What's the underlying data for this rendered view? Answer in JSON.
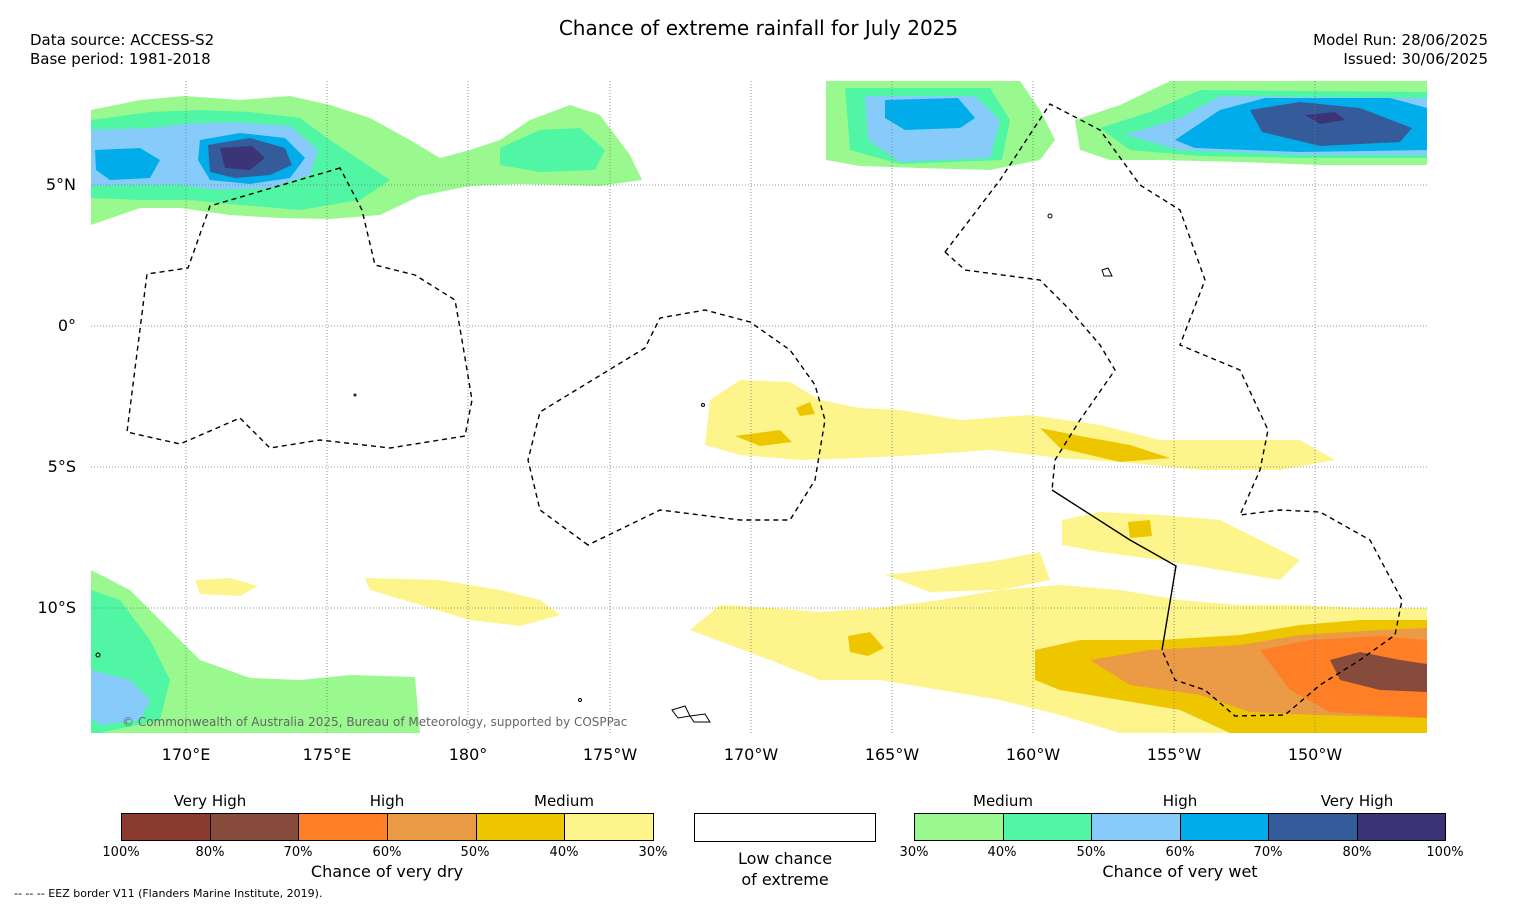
{
  "header": {
    "title": "Chance of extreme rainfall for July 2025",
    "left_lines": [
      "Data source: ACCESS-S2",
      "Base period: 1981-2018"
    ],
    "right_lines": [
      "Model Run: 28/06/2025",
      "Issued: 30/06/2025"
    ]
  },
  "map": {
    "latitude_labels": [
      "5°N",
      "0°",
      "5°S",
      "10°S"
    ],
    "longitude_labels": [
      "170°E",
      "175°E",
      "180°",
      "175°W",
      "170°W",
      "165°W",
      "160°W",
      "155°W",
      "150°W"
    ],
    "copyright": "© Commonwealth of Australia 2025, Bureau of Meteorology, supported by COSPPac"
  },
  "legend_dry": {
    "categories": [
      "Very High",
      "High",
      "Medium"
    ],
    "ticks": [
      "100%",
      "80%",
      "70%",
      "60%",
      "50%",
      "40%",
      "30%"
    ],
    "colors": [
      "#8b3a30",
      "#874b3b",
      "#ff7f27",
      "#eb9a45",
      "#edc600",
      "#fdf58c"
    ],
    "caption": "Chance of very dry"
  },
  "legend_low": {
    "line1": "Low chance",
    "line2": "of extreme"
  },
  "legend_wet": {
    "categories": [
      "Medium",
      "High",
      "Very High"
    ],
    "ticks": [
      "30%",
      "40%",
      "50%",
      "60%",
      "70%",
      "80%",
      "100%"
    ],
    "colors": [
      "#9af98e",
      "#50f6a3",
      "#87cbfb",
      "#00adea",
      "#345c9b",
      "#3b3477"
    ],
    "caption": "Chance of very wet"
  },
  "footer": {
    "eez_note": "--  --  -- EEZ border V11 (Flanders Marine Institute, 2019)."
  }
}
